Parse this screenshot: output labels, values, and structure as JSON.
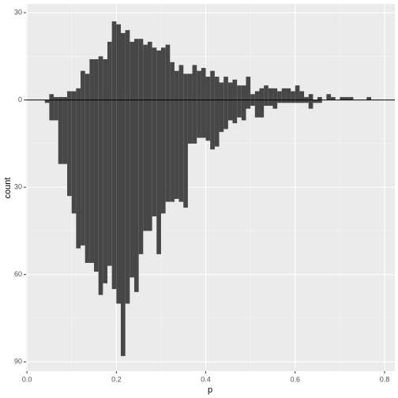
{
  "chart_data": {
    "type": "histogram",
    "x_label": "p",
    "y_label": "count",
    "bins": [
      0.04,
      0.05,
      0.06,
      0.07,
      0.08,
      0.09,
      0.1,
      0.11,
      0.12,
      0.13,
      0.14,
      0.15,
      0.16,
      0.17,
      0.18,
      0.19,
      0.2,
      0.21,
      0.22,
      0.23,
      0.24,
      0.25,
      0.26,
      0.27,
      0.28,
      0.29,
      0.3,
      0.31,
      0.32,
      0.33,
      0.34,
      0.35,
      0.36,
      0.37,
      0.38,
      0.39,
      0.4,
      0.41,
      0.42,
      0.43,
      0.44,
      0.45,
      0.46,
      0.47,
      0.48,
      0.49,
      0.5,
      0.51,
      0.52,
      0.53,
      0.54,
      0.55,
      0.56,
      0.57,
      0.58,
      0.59,
      0.6,
      0.61,
      0.62,
      0.63,
      0.64,
      0.65,
      0.66,
      0.67,
      0.68,
      0.69,
      0.7,
      0.71,
      0.72,
      0.73,
      0.74,
      0.75,
      0.76,
      0.77,
      0.78
    ],
    "series": [
      {
        "color": "#474747",
        "values": [
          0,
          2,
          1,
          1,
          1,
          3,
          3,
          4,
          10,
          9,
          14,
          14,
          15,
          14,
          20,
          27,
          26,
          23,
          24,
          20,
          21,
          21,
          19,
          20,
          18,
          17,
          18,
          19,
          13,
          10,
          12,
          9,
          9,
          12,
          10,
          11,
          8,
          10,
          8,
          6,
          8,
          6,
          7,
          5,
          5,
          8,
          2,
          3,
          4,
          5,
          4,
          4,
          3,
          4,
          4,
          3,
          5,
          3,
          1,
          2,
          0,
          1,
          0,
          2,
          1,
          0,
          1,
          1,
          1,
          0,
          0,
          0,
          1,
          0
        ]
      },
      {
        "color": "#474747",
        "values": [
          -1,
          -7,
          -7,
          -22,
          -22,
          -33,
          -39,
          -51,
          -50,
          -56,
          -56,
          -59,
          -67,
          -63,
          -57,
          -65,
          -70,
          -88,
          -70,
          -61,
          -66,
          -53,
          -45,
          -45,
          -40,
          -53,
          -39,
          -35,
          -35,
          -34,
          -35,
          -37,
          -15,
          -15,
          -13,
          -13,
          -14,
          -17,
          -16,
          -11,
          -10,
          -7,
          -8,
          -6,
          -7,
          -3,
          -2,
          -6,
          -6,
          -2,
          -2,
          -3,
          -1,
          -1,
          -1,
          -1,
          -1,
          -1,
          -1,
          -3,
          -1,
          -1,
          0,
          0,
          0,
          0,
          0,
          0,
          0,
          0,
          0,
          0,
          0,
          0
        ]
      }
    ],
    "hline": 0,
    "xlim": [
      -0.002,
      0.823
    ],
    "ylim": [
      -93.2,
      33
    ],
    "xticks": [
      {
        "value": 0,
        "label": "0.0"
      },
      {
        "value": 0.2,
        "label": "0.2"
      },
      {
        "value": 0.4,
        "label": "0.4"
      },
      {
        "value": 0.6,
        "label": "0.6"
      },
      {
        "value": 0.8,
        "label": "0.8"
      }
    ],
    "yticks": [
      {
        "value": -90,
        "label": "90"
      },
      {
        "value": -60,
        "label": "60"
      },
      {
        "value": -30,
        "label": "30"
      },
      0,
      30
    ],
    "grid": true
  }
}
